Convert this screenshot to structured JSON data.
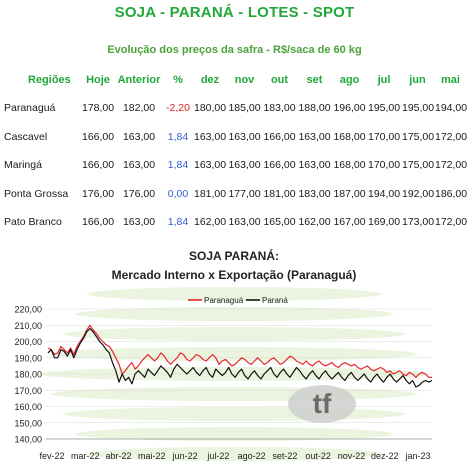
{
  "title": "SOJA - PARANÁ - LOTES - SPOT",
  "subtitle": "Evolução dos preços da safra - R$/saca de 60 kg",
  "table": {
    "headers": [
      "Regiões",
      "Hoje",
      "Anterior",
      "%",
      "dez",
      "nov",
      "out",
      "set",
      "ago",
      "jul",
      "jun",
      "mai"
    ],
    "rows": [
      {
        "region": "Paranaguá",
        "hoje": "178,00",
        "anterior": "182,00",
        "pct": "-2,20",
        "pct_color": "neg",
        "dez": "180,00",
        "nov": "185,00",
        "out": "183,00",
        "set": "188,00",
        "ago": "196,00",
        "jul": "195,00",
        "jun": "195,00",
        "mai": "194,00"
      },
      {
        "region": "Cascavel",
        "hoje": "166,00",
        "anterior": "163,00",
        "pct": "1,84",
        "pct_color": "pos",
        "dez": "163,00",
        "nov": "163,00",
        "out": "166,00",
        "set": "163,00",
        "ago": "168,00",
        "jul": "170,00",
        "jun": "175,00",
        "mai": "172,00"
      },
      {
        "region": "Maringá",
        "hoje": "166,00",
        "anterior": "163,00",
        "pct": "1,84",
        "pct_color": "pos",
        "dez": "163,00",
        "nov": "163,00",
        "out": "166,00",
        "set": "163,00",
        "ago": "168,00",
        "jul": "170,00",
        "jun": "175,00",
        "mai": "172,00"
      },
      {
        "region": "Ponta Grossa",
        "hoje": "176,00",
        "anterior": "176,00",
        "pct": "0,00",
        "pct_color": "pos",
        "dez": "181,00",
        "nov": "177,00",
        "out": "181,00",
        "set": "183,00",
        "ago": "187,00",
        "jul": "194,00",
        "jun": "192,00",
        "mai": "186,00"
      },
      {
        "region": "Pato Branco",
        "hoje": "166,00",
        "anterior": "163,00",
        "pct": "1,84",
        "pct_color": "pos",
        "dez": "162,00",
        "nov": "163,00",
        "out": "165,00",
        "set": "162,00",
        "ago": "167,00",
        "jul": "169,00",
        "jun": "173,00",
        "mai": "172,00"
      }
    ]
  },
  "chart_data": {
    "type": "line",
    "title": "SOJA PARANÁ:",
    "subtitle": "Mercado Interno x Exportação (Paranaguá)",
    "ylim": [
      140,
      220
    ],
    "yticks": [
      "140,00",
      "150,00",
      "160,00",
      "170,00",
      "180,00",
      "190,00",
      "200,00",
      "210,00",
      "220,00"
    ],
    "xticks": [
      "fev-22",
      "mar-22",
      "abr-22",
      "mai-22",
      "jun-22",
      "jul-22",
      "ago-22",
      "set-22",
      "out-22",
      "nov-22",
      "dez-22",
      "jan-23"
    ],
    "legend_position": "top-center",
    "watermark": "tf",
    "colors": {
      "paranagua": "#e8262b",
      "parana": "#111111",
      "grid": "#d9d9d9",
      "stripes": "#d8ebc4"
    },
    "series": [
      {
        "name": "Paranaguá",
        "color": "#e8262b",
        "values": [
          196,
          195,
          192,
          193,
          197,
          195,
          193,
          196,
          192,
          197,
          200,
          203,
          207,
          210,
          207,
          205,
          202,
          200,
          198,
          197,
          194,
          190,
          186,
          180,
          182,
          185,
          187,
          183,
          185,
          188,
          190,
          192,
          190,
          188,
          190,
          193,
          191,
          188,
          186,
          188,
          190,
          193,
          192,
          189,
          188,
          190,
          192,
          191,
          189,
          188,
          190,
          192,
          190,
          186,
          188,
          189,
          187,
          185,
          186,
          188,
          190,
          189,
          187,
          186,
          188,
          190,
          188,
          186,
          187,
          189,
          190,
          188,
          186,
          187,
          189,
          191,
          190,
          188,
          187,
          186,
          188,
          186,
          185,
          187,
          188,
          186,
          185,
          186,
          187,
          185,
          184,
          186,
          187,
          186,
          185,
          186,
          184,
          183,
          184,
          185,
          183,
          182,
          183,
          184,
          183,
          181,
          182,
          180,
          181,
          182,
          180,
          179,
          181,
          180,
          178,
          180,
          181,
          180,
          178,
          178
        ]
      },
      {
        "name": "Paraná",
        "color": "#111111",
        "values": [
          193,
          195,
          190,
          190,
          195,
          194,
          191,
          195,
          190,
          195,
          199,
          202,
          206,
          208,
          206,
          203,
          200,
          198,
          195,
          193,
          187,
          182,
          175,
          180,
          176,
          178,
          174,
          180,
          182,
          180,
          178,
          183,
          181,
          179,
          182,
          185,
          183,
          181,
          178,
          183,
          186,
          184,
          182,
          180,
          182,
          184,
          181,
          179,
          182,
          184,
          180,
          178,
          183,
          181,
          179,
          181,
          184,
          180,
          178,
          181,
          183,
          179,
          177,
          180,
          182,
          179,
          177,
          180,
          182,
          184,
          180,
          178,
          181,
          183,
          180,
          178,
          181,
          184,
          182,
          179,
          177,
          180,
          182,
          179,
          177,
          180,
          182,
          179,
          177,
          179,
          181,
          178,
          176,
          179,
          181,
          178,
          176,
          178,
          180,
          177,
          175,
          178,
          180,
          177,
          175,
          178,
          180,
          177,
          175,
          177,
          179,
          176,
          174,
          176,
          172,
          173,
          175,
          176,
          175,
          176
        ]
      }
    ]
  }
}
